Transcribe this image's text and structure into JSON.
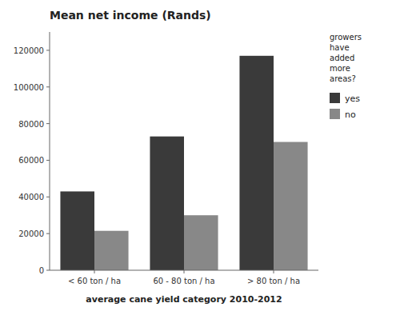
{
  "chart_data": {
    "type": "bar",
    "title": "Mean net income (Rands)",
    "x_label": "average cane yield category 2010-2012",
    "categories": [
      "< 60 ton / ha",
      "60 - 80 ton / ha",
      "> 80 ton / ha"
    ],
    "series": [
      {
        "name": "yes",
        "color": "#3a3a3a",
        "values": [
          43000,
          73000,
          117000
        ]
      },
      {
        "name": "no",
        "color": "#888888",
        "values": [
          21500,
          30000,
          70000
        ]
      }
    ],
    "legend_title": "growers\nhave\nadded\nmore\nareas?",
    "legend": "right",
    "ylim": [
      0,
      130000
    ],
    "yticks": [
      0,
      20000,
      40000,
      60000,
      80000,
      100000,
      120000
    ],
    "grid": false
  }
}
